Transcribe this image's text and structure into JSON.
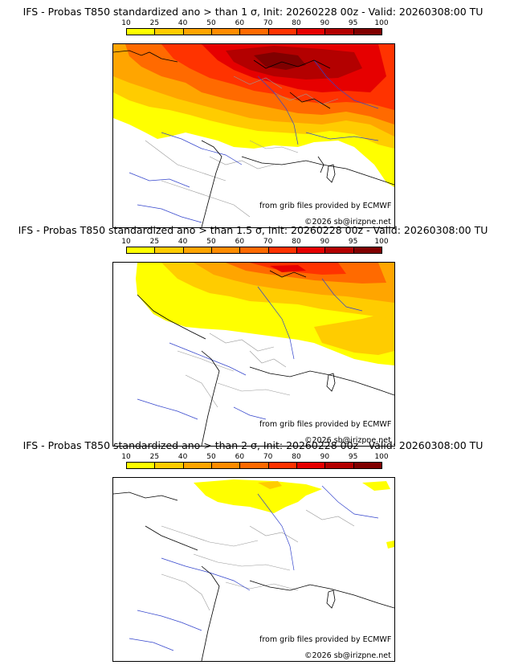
{
  "panels": [
    {
      "title": "IFS - Probas T850  standardized ano > than 1 σ, Init: 20260228 00z - Valid: 20260308:00 TU",
      "coverage_level": "high"
    },
    {
      "title": "IFS - Probas T850  standardized ano > than 1.5 σ, Init: 20260228 00z - Valid: 20260308:00 TU",
      "coverage_level": "medium"
    },
    {
      "title": "IFS - Probas T850  standardized ano > than 2 σ, Init: 20260228 00z - Valid: 20260308:00 TU",
      "coverage_level": "low"
    }
  ],
  "colorbar": {
    "labels": [
      "10",
      "25",
      "40",
      "50",
      "60",
      "70",
      "80",
      "90",
      "95",
      "100"
    ],
    "colors": [
      "#ffff00",
      "#ffcc00",
      "#ffa500",
      "#ff8c00",
      "#ff6a00",
      "#ff3300",
      "#e60000",
      "#b30000",
      "#800000"
    ]
  },
  "credits": {
    "source": "from grib files provided by ECMWF",
    "copyright": "©2026 sb@irizpne.net"
  }
}
